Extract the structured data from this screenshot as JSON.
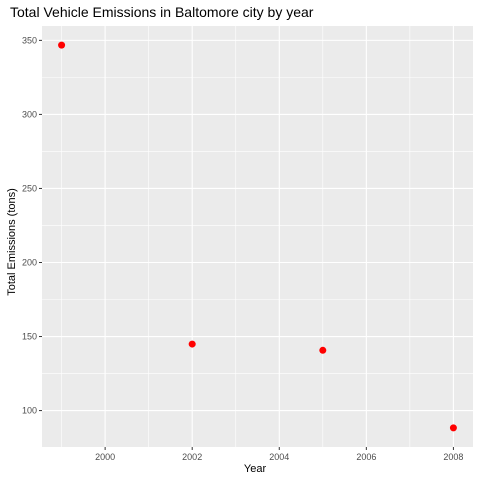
{
  "chart_data": {
    "type": "scatter",
    "title": "Total Vehicle Emissions in Baltomore city by year",
    "xlabel": "Year",
    "ylabel": "Total Emissions (tons)",
    "x": [
      1999,
      2002,
      2005,
      2008
    ],
    "y": [
      346.8,
      144.9,
      140.7,
      88.3
    ],
    "xlim": [
      1998.55,
      2008.45
    ],
    "ylim": [
      75.4,
      359.7
    ],
    "x_ticks": [
      2000,
      2002,
      2004,
      2006,
      2008
    ],
    "y_ticks": [
      100,
      150,
      200,
      250,
      300,
      350
    ],
    "point_color": "#ff0000",
    "panel_background": "#ebebeb",
    "grid_color": "#ffffff",
    "grid": true
  }
}
